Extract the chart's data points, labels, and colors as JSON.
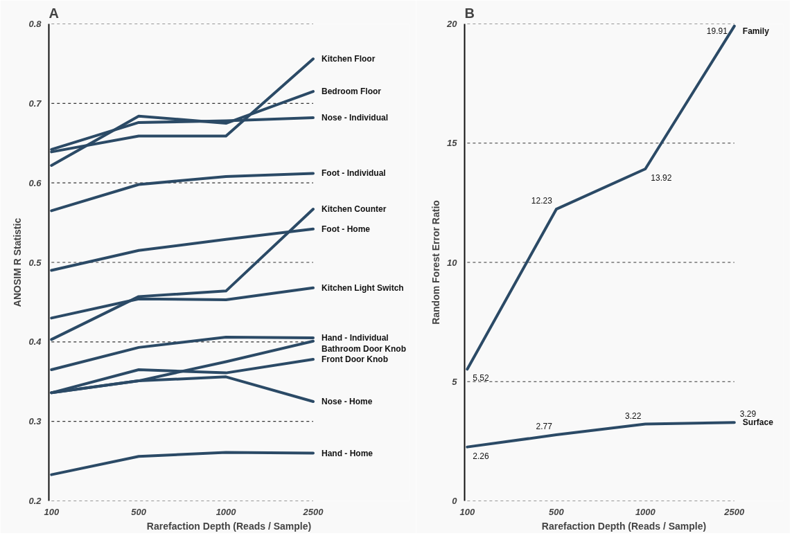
{
  "chart_data": [
    {
      "type": "line",
      "title": "A",
      "xlabel": "Rarefaction Depth (Reads / Sample)",
      "ylabel": "ANOSIM R Statistic",
      "categories": [
        "100",
        "500",
        "1000",
        "2500"
      ],
      "ylim": [
        0.2,
        0.8
      ],
      "yticks": [
        0.2,
        0.3,
        0.4,
        0.5,
        0.6,
        0.7,
        0.8
      ],
      "grid": "y",
      "marker": "none",
      "line_style": "solid",
      "series": [
        {
          "name": "Kitchen Floor",
          "color": "#2b4a66",
          "values": [
            0.639,
            0.659,
            0.659,
            0.756
          ]
        },
        {
          "name": "Bedroom Floor",
          "color": "#2b4a66",
          "values": [
            0.622,
            0.684,
            0.675,
            0.715
          ]
        },
        {
          "name": "Nose - Individual",
          "color": "#2b4a66",
          "values": [
            0.642,
            0.676,
            0.678,
            0.682
          ]
        },
        {
          "name": "Foot - Individual",
          "color": "#2b4a66",
          "values": [
            0.565,
            0.598,
            0.608,
            0.612
          ]
        },
        {
          "name": "Kitchen Counter",
          "color": "#2b4a66",
          "values": [
            0.403,
            0.457,
            0.464,
            0.567
          ]
        },
        {
          "name": "Foot - Home",
          "color": "#2b4a66",
          "values": [
            0.49,
            0.515,
            0.529,
            0.542
          ]
        },
        {
          "name": "Kitchen Light Switch",
          "color": "#2b4a66",
          "values": [
            0.43,
            0.454,
            0.453,
            0.468
          ]
        },
        {
          "name": "Hand - Individual",
          "color": "#2b4a66",
          "values": [
            0.365,
            0.393,
            0.406,
            0.405
          ]
        },
        {
          "name": "Bathroom Door Knob",
          "color": "#2b4a66",
          "values": [
            0.336,
            0.351,
            0.375,
            0.401
          ]
        },
        {
          "name": "Front Door Knob",
          "color": "#2b4a66",
          "values": [
            0.336,
            0.365,
            0.361,
            0.378
          ]
        },
        {
          "name": "Nose - Home",
          "color": "#2b4a66",
          "values": [
            0.336,
            0.351,
            0.356,
            0.325
          ]
        },
        {
          "name": "Hand - Home",
          "color": "#2b4a66",
          "values": [
            0.233,
            0.256,
            0.261,
            0.26
          ]
        }
      ]
    },
    {
      "type": "line",
      "title": "B",
      "xlabel": "Rarefaction Depth (Reads / Sample)",
      "ylabel": "Random Forest Error Ratio",
      "categories": [
        "100",
        "500",
        "1000",
        "2500"
      ],
      "ylim": [
        0,
        20
      ],
      "yticks": [
        0,
        5,
        10,
        15,
        20
      ],
      "grid": "y",
      "marker": "none",
      "line_style": "solid",
      "data_labels": true,
      "series": [
        {
          "name": "Family",
          "color": "#2b4a66",
          "values": [
            5.52,
            12.23,
            13.92,
            19.91
          ]
        },
        {
          "name": "Surface",
          "color": "#2b4a66",
          "values": [
            2.26,
            2.77,
            3.22,
            3.29
          ]
        }
      ]
    }
  ]
}
